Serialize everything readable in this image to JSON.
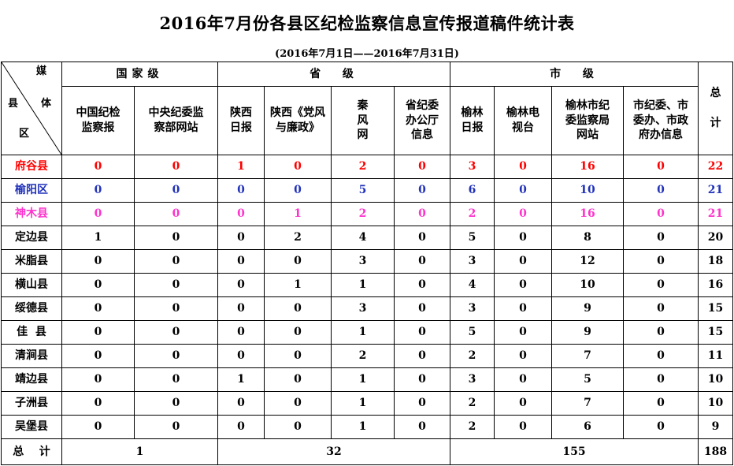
{
  "title": "2016年7月份各县区纪检监察信息宣传报道稿件统计表",
  "subtitle": "(2016年7月1日——2016年7月31日)",
  "header": {
    "corner": {
      "top": "媒",
      "mid1": "县",
      "mid2": "体",
      "bottom": "区"
    },
    "groups": [
      "国家级",
      "省  级",
      "市  级"
    ],
    "total_label": "总\n\n计",
    "columns": [
      "中国纪检\n监察报",
      "中央纪委监\n察部网站",
      "陕西\n日报",
      "陕西《党风\n与廉政》",
      "秦\n风\n网",
      "省纪委\n办公厅\n信息",
      "榆林\n日报",
      "榆林电\n视台",
      "榆林市纪\n委监察局\n网站",
      "市纪委、市\n委办、市政\n府办信息"
    ]
  },
  "colors": {
    "red": "#ff0000",
    "blue": "#2233bb",
    "pink": "#ff33cc"
  },
  "rows": [
    {
      "county": "府谷县",
      "style": "red",
      "values": [
        "0",
        "0",
        "1",
        "0",
        "2",
        "0",
        "3",
        "0",
        "16",
        "0"
      ],
      "total": "22"
    },
    {
      "county": "榆阳区",
      "style": "blue",
      "values": [
        "0",
        "0",
        "0",
        "0",
        "5",
        "0",
        "6",
        "0",
        "10",
        "0"
      ],
      "total": "21"
    },
    {
      "county": "神木县",
      "style": "pink",
      "values": [
        "0",
        "0",
        "0",
        "1",
        "2",
        "0",
        "2",
        "0",
        "16",
        "0"
      ],
      "total": "21"
    },
    {
      "county": "定边县",
      "style": "",
      "values": [
        "1",
        "0",
        "0",
        "2",
        "4",
        "0",
        "5",
        "0",
        "8",
        "0"
      ],
      "total": "20"
    },
    {
      "county": "米脂县",
      "style": "",
      "values": [
        "0",
        "0",
        "0",
        "0",
        "3",
        "0",
        "3",
        "0",
        "12",
        "0"
      ],
      "total": "18"
    },
    {
      "county": "横山县",
      "style": "",
      "values": [
        "0",
        "0",
        "0",
        "1",
        "1",
        "0",
        "4",
        "0",
        "10",
        "0"
      ],
      "total": "16"
    },
    {
      "county": "绥德县",
      "style": "",
      "values": [
        "0",
        "0",
        "0",
        "0",
        "3",
        "0",
        "3",
        "0",
        "9",
        "0"
      ],
      "total": "15"
    },
    {
      "county": "佳  县",
      "style": "",
      "values": [
        "0",
        "0",
        "0",
        "0",
        "1",
        "0",
        "5",
        "0",
        "9",
        "0"
      ],
      "total": "15"
    },
    {
      "county": "清涧县",
      "style": "",
      "values": [
        "0",
        "0",
        "0",
        "0",
        "2",
        "0",
        "2",
        "0",
        "7",
        "0"
      ],
      "total": "11"
    },
    {
      "county": "靖边县",
      "style": "",
      "values": [
        "0",
        "0",
        "1",
        "0",
        "1",
        "0",
        "3",
        "0",
        "5",
        "0"
      ],
      "total": "10"
    },
    {
      "county": "子洲县",
      "style": "",
      "values": [
        "0",
        "0",
        "0",
        "0",
        "1",
        "0",
        "2",
        "0",
        "7",
        "0"
      ],
      "total": "10"
    },
    {
      "county": "吴堡县",
      "style": "",
      "values": [
        "0",
        "0",
        "0",
        "0",
        "1",
        "0",
        "2",
        "0",
        "6",
        "0"
      ],
      "total": "9"
    }
  ],
  "totals": {
    "label": "总    计",
    "national": "1",
    "provincial": "32",
    "city": "155",
    "grand": "188"
  }
}
